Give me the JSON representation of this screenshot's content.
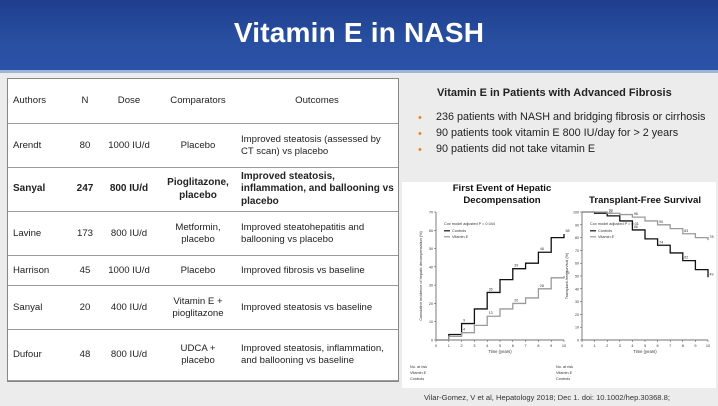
{
  "title": "Vitamin E in NASH",
  "table": {
    "headers": [
      "Authors",
      "N",
      "Dose",
      "Comparators",
      "Outcomes"
    ],
    "rows": [
      {
        "author": "Arendt",
        "n": "80",
        "dose": "1000 IU/d",
        "comparator": "Placebo",
        "outcome": "Improved steatosis (assessed by CT scan) vs placebo",
        "bold": false
      },
      {
        "author": "Sanyal",
        "n": "247",
        "dose": "800 IU/d",
        "comparator": "Pioglitazone, placebo",
        "outcome": "Improved steatosis, inflammation, and ballooning vs placebo",
        "bold": true
      },
      {
        "author": "Lavine",
        "n": "173",
        "dose": "800 IU/d",
        "comparator": "Metformin, placebo",
        "outcome": "Improved steatohepatitis and ballooning vs placebo",
        "bold": false
      },
      {
        "author": "Harrison",
        "n": "45",
        "dose": "1000 IU/d",
        "comparator": "Placebo",
        "outcome": "Improved fibrosis vs baseline",
        "bold": false
      },
      {
        "author": "Sanyal",
        "n": "20",
        "dose": "400 IU/d",
        "comparator": "Vitamin E + pioglitazone",
        "outcome": "Improved steatosis vs baseline",
        "bold": false
      },
      {
        "author": "Dufour",
        "n": "48",
        "dose": "800 IU/d",
        "comparator": "UDCA + placebo",
        "outcome": "Improved steatosis, inflammation, and ballooning vs baseline",
        "bold": false
      }
    ]
  },
  "right_panel": {
    "title": "Vitamin E in Patients with Advanced Fibrosis",
    "bullets": [
      "236 patients with NASH and bridging fibrosis  or cirrhosis",
      "90 patients took vitamin E 800 IU/day for > 2 years",
      "90 patients did not take vitamin E"
    ]
  },
  "chart_data": [
    {
      "type": "line",
      "title": "First Event of Hepatic Decompensation",
      "xlabel": "Time (years)",
      "ylabel": "Cumulative incidence of hepatic decompensation (%)",
      "xlim": [
        0,
        10
      ],
      "ylim": [
        0,
        70
      ],
      "annotation": "Cox model adjusted P = 0.044",
      "series": [
        {
          "name": "Controls",
          "color": "#111111",
          "x": [
            0,
            1,
            2,
            3,
            4,
            5,
            6,
            7,
            8,
            9,
            10
          ],
          "y": [
            0,
            3,
            9,
            17,
            26,
            33,
            39,
            42,
            48,
            56,
            58
          ]
        },
        {
          "name": "Vitamin E",
          "color": "#9a9a9a",
          "x": [
            0,
            1,
            2,
            3,
            4,
            5,
            6,
            7,
            8,
            9,
            10
          ],
          "y": [
            0,
            2,
            4,
            8,
            13,
            17,
            20,
            23,
            28,
            34,
            35
          ]
        }
      ]
    },
    {
      "type": "line",
      "title": "Transplant-Free Survival",
      "xlabel": "Time (years)",
      "ylabel": "Transplant-free survival (%)",
      "xlim": [
        0,
        10
      ],
      "ylim": [
        0,
        100
      ],
      "annotation": "Cox model adjusted P = 0.01",
      "series": [
        {
          "name": "Controls",
          "color": "#111111",
          "x": [
            0,
            1,
            2,
            3,
            4,
            5,
            6,
            7,
            8,
            9,
            10
          ],
          "y": [
            100,
            99,
            97,
            93,
            86,
            79,
            74,
            68,
            62,
            55,
            49
          ]
        },
        {
          "name": "Vitamin E",
          "color": "#9a9a9a",
          "x": [
            0,
            1,
            2,
            3,
            4,
            5,
            6,
            7,
            8,
            9,
            10
          ],
          "y": [
            100,
            100,
            99,
            98,
            96,
            93,
            90,
            87,
            83,
            80,
            78
          ]
        }
      ]
    }
  ],
  "risk_table_label": "No. at risk",
  "risk_table_rows": [
    "Vitamin E",
    "Controls"
  ],
  "citation": "Vilar-Gomez, V et al, Hepatology 2018; Dec 1. doi: 10.1002/hep.30368.8;"
}
